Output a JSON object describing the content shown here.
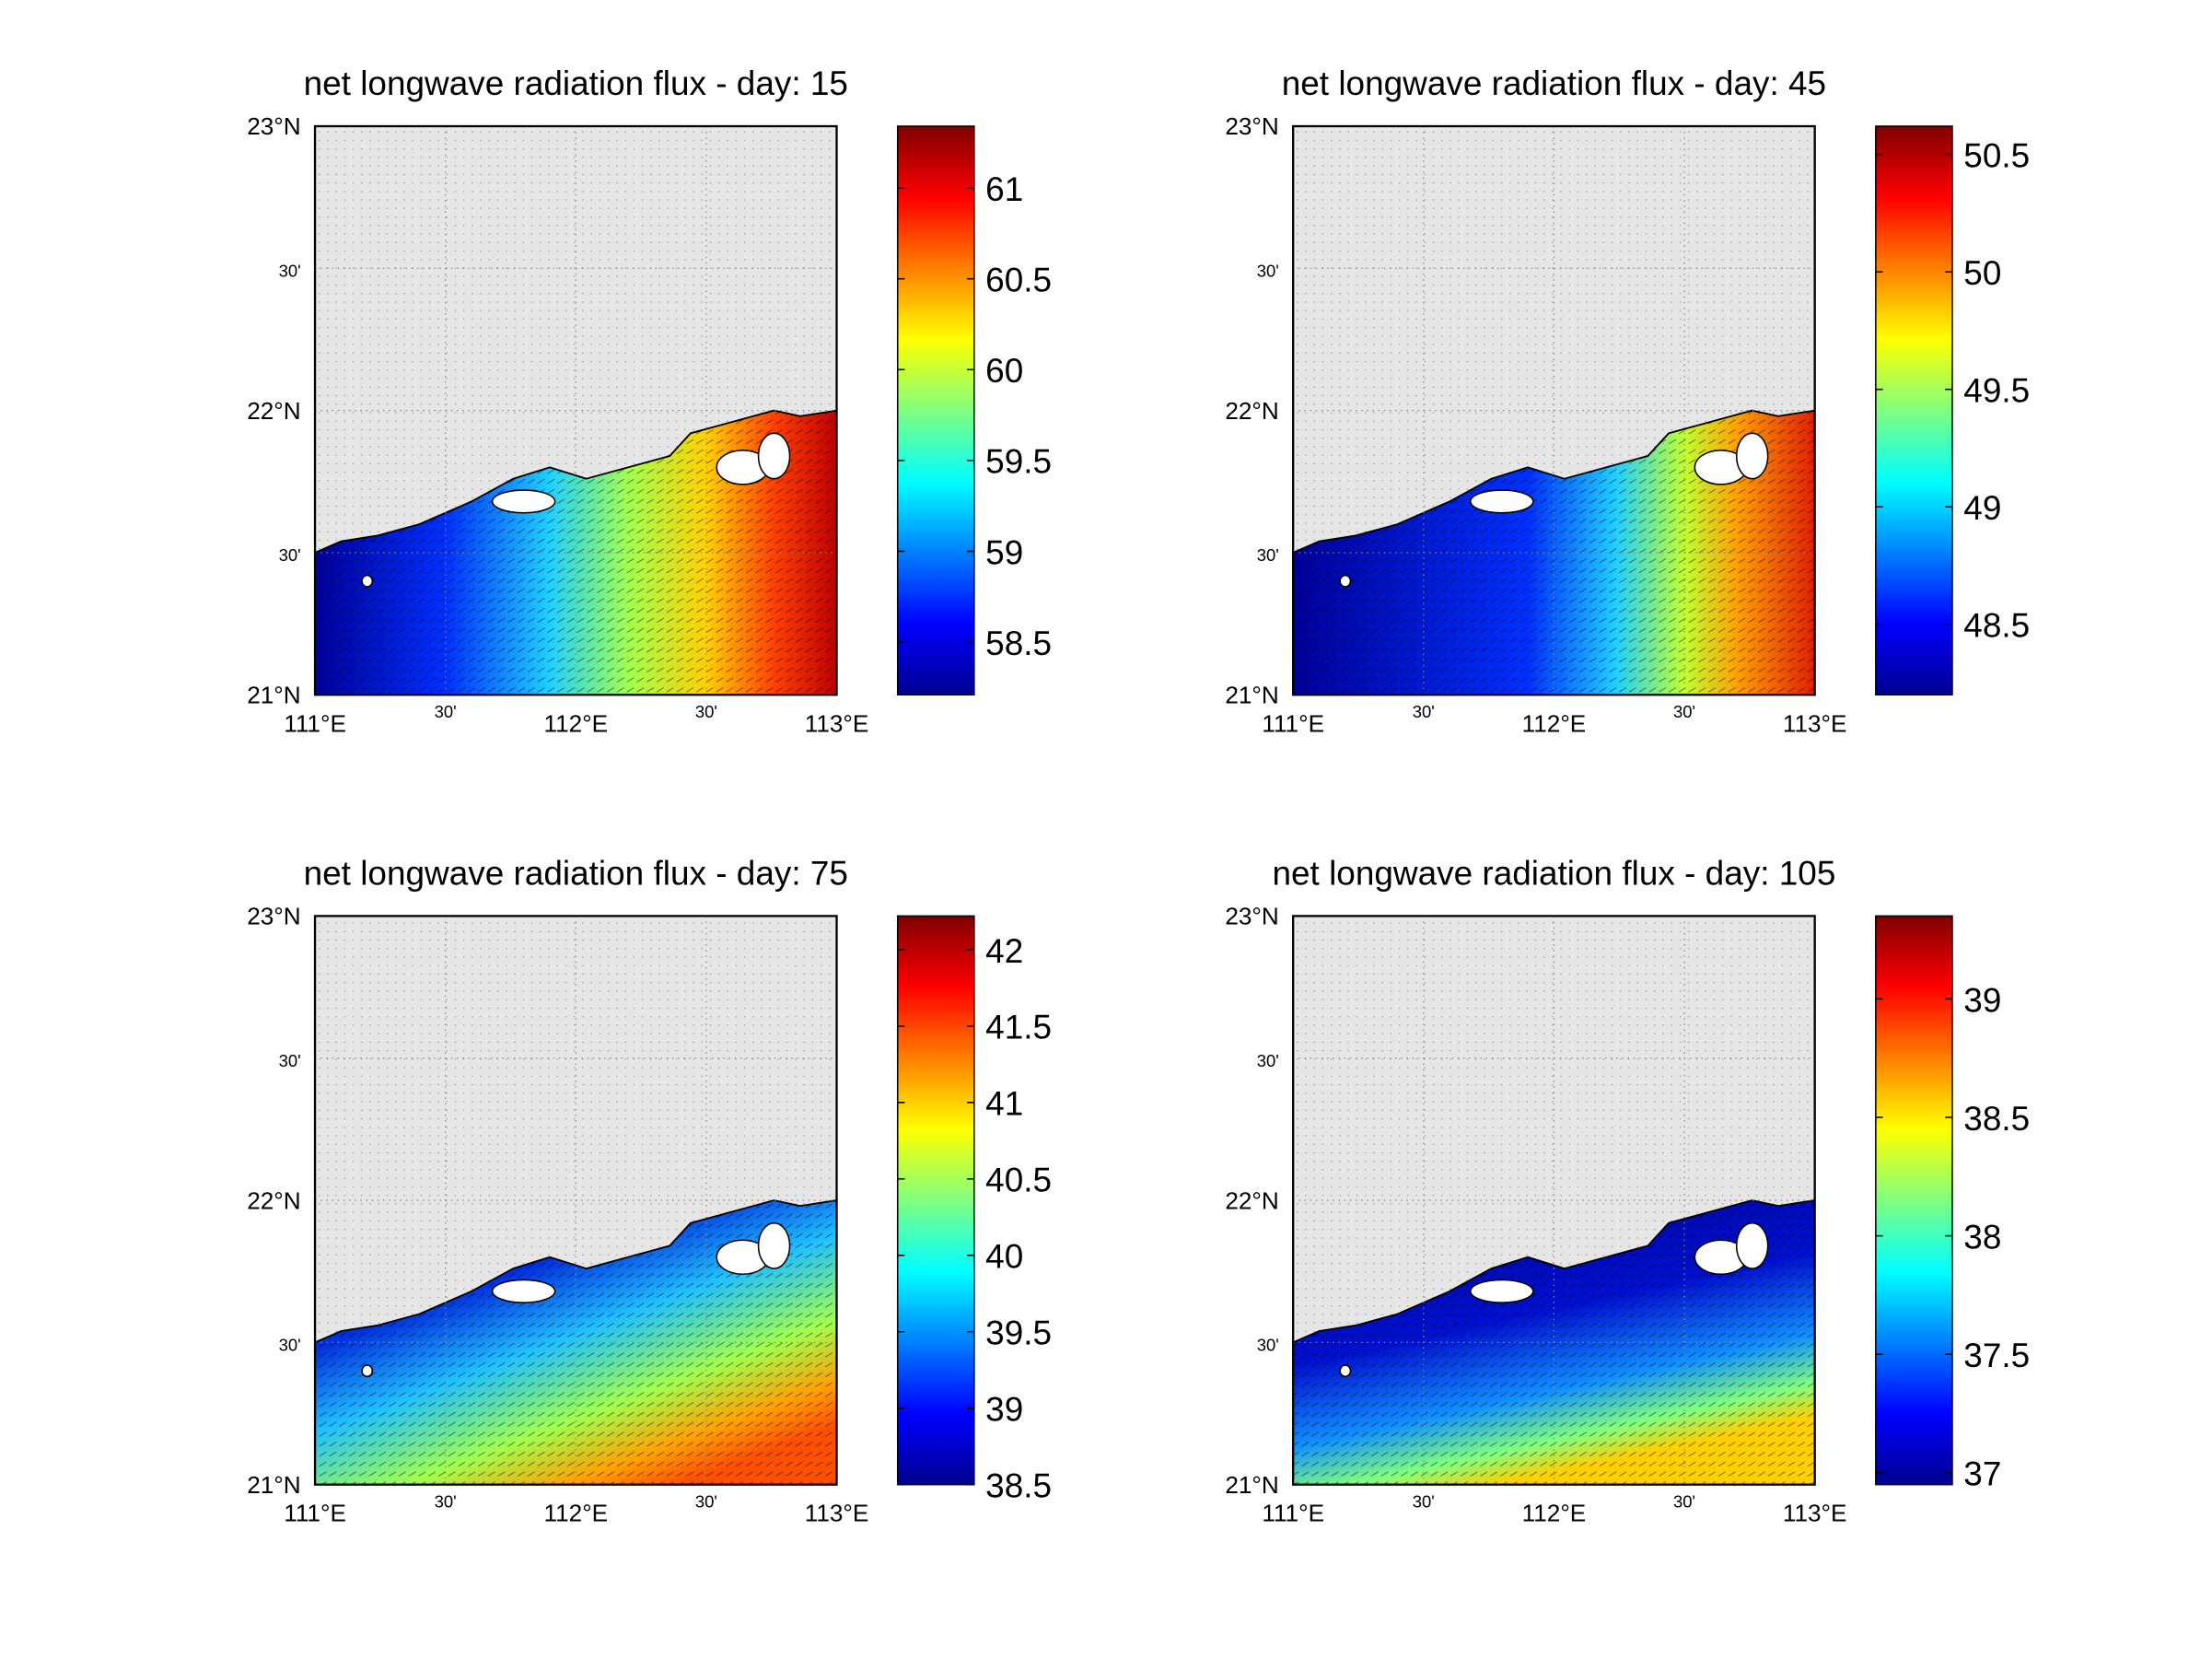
{
  "panels": [
    {
      "title": "net longwave radiation flux - day: 15",
      "lat_labels": [
        "23°N",
        "30'",
        "22°N",
        "30'",
        "21°N"
      ],
      "lon_labels": [
        "111°E",
        "30'",
        "112°E",
        "30'",
        "113°E"
      ],
      "colorbar": {
        "lim": [
          58.21,
          61.34
        ],
        "ticks": [
          58.5,
          59,
          59.5,
          60,
          60.5,
          61
        ]
      }
    },
    {
      "title": "net longwave radiation flux - day: 45",
      "lat_labels": [
        "23°N",
        "30'",
        "22°N",
        "30'",
        "21°N"
      ],
      "lon_labels": [
        "111°E",
        "30'",
        "112°E",
        "30'",
        "113°E"
      ],
      "colorbar": {
        "lim": [
          48.2,
          50.62
        ],
        "ticks": [
          48.5,
          49,
          49.5,
          50,
          50.5
        ]
      }
    },
    {
      "title": "net longwave radiation flux - day: 75",
      "lat_labels": [
        "23°N",
        "30'",
        "22°N",
        "30'",
        "21°N"
      ],
      "lon_labels": [
        "111°E",
        "30'",
        "112°E",
        "30'",
        "113°E"
      ],
      "colorbar": {
        "lim": [
          38.5,
          42.22
        ],
        "ticks": [
          38.5,
          39,
          39.5,
          40,
          40.5,
          41,
          41.5,
          42
        ]
      }
    },
    {
      "title": "net longwave radiation flux - day: 105",
      "lat_labels": [
        "23°N",
        "30'",
        "22°N",
        "30'",
        "21°N"
      ],
      "lon_labels": [
        "111°E",
        "30'",
        "112°E",
        "30'",
        "113°E"
      ],
      "colorbar": {
        "lim": [
          36.95,
          39.35
        ],
        "ticks": [
          37,
          37.5,
          38,
          38.5,
          39
        ]
      }
    }
  ]
}
